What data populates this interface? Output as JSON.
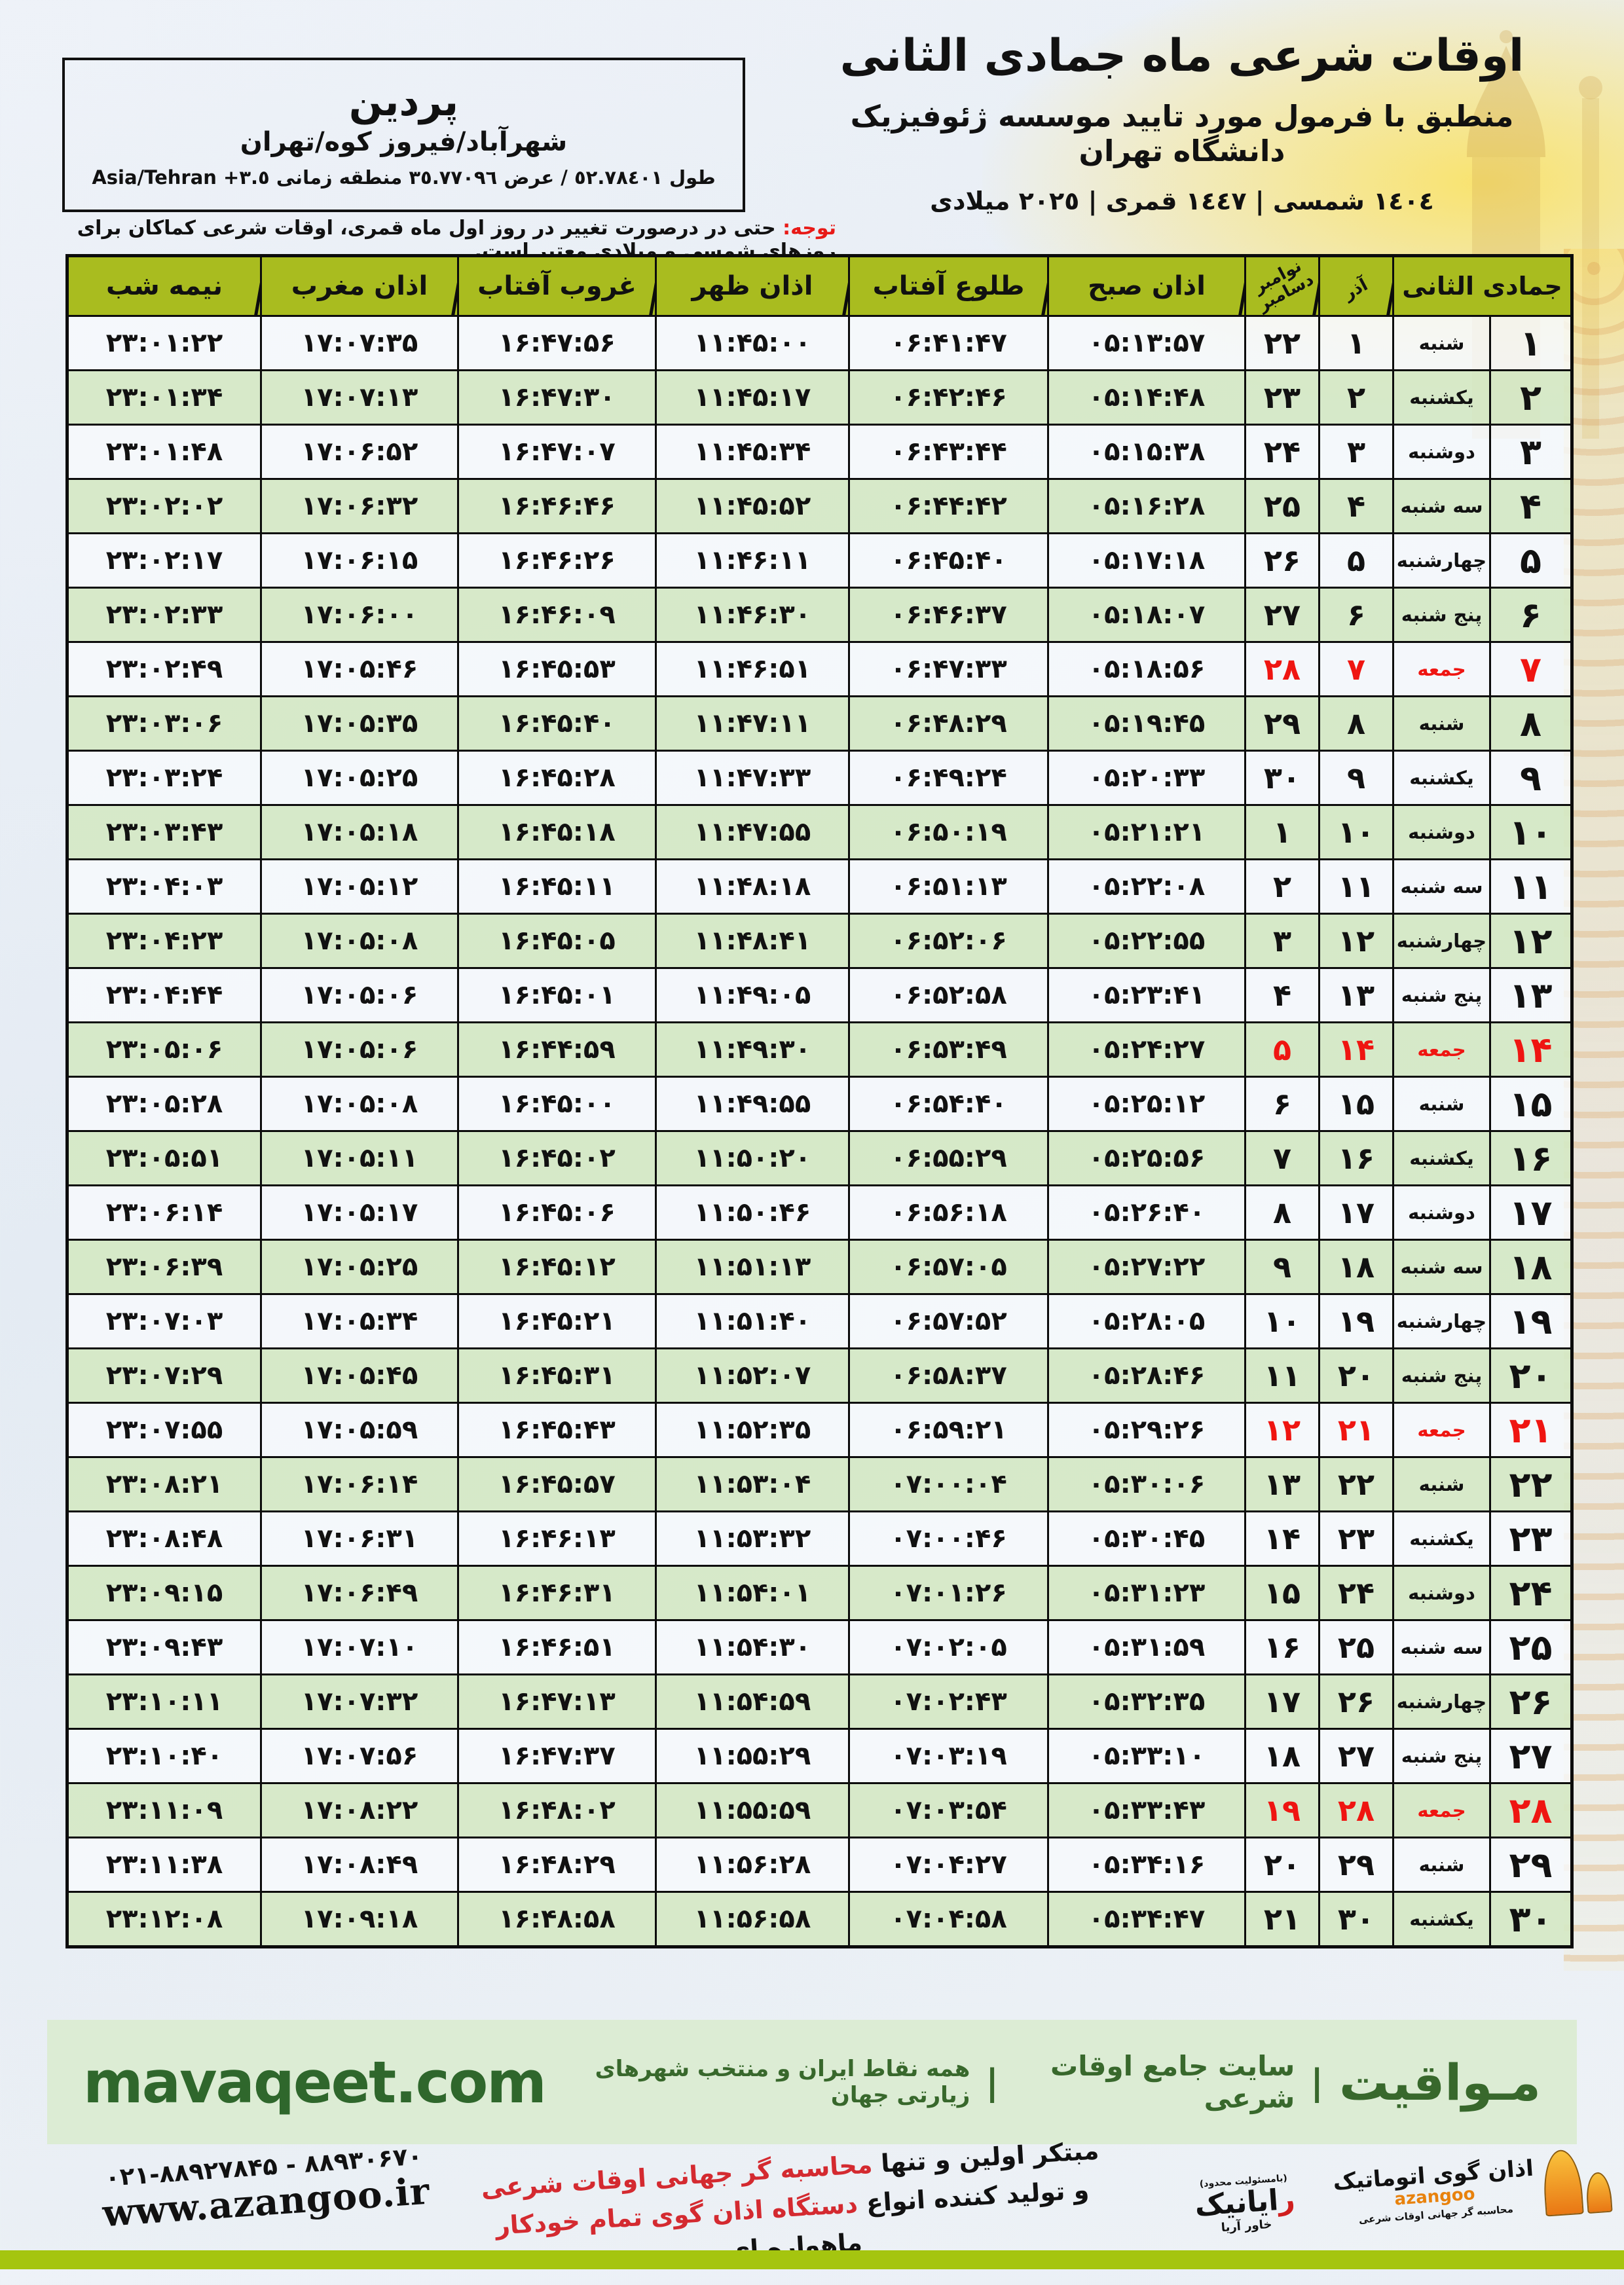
{
  "header": {
    "title": "اوقات شرعی ماه جمادی الثانی",
    "subtitle": "منطبق با فرمول مورد تایید موسسه ژئوفیزیک دانشگاه تهران",
    "date_line": "١٤٠٤ شمسی | ١٤٤٧ قمری | ٢٠٢٥ میلادی",
    "location": {
      "name": "پردین",
      "region": "شهرآباد/فیروز کوه/تهران",
      "coords_prefix": "طول ٥٢.٧٨٤٠١ / عرض ٣٥.٧٧٠٩٦ منطقه زمانی",
      "coords_tz": "Asia/Tehran +٣.٥"
    }
  },
  "note": {
    "label": "توجه:",
    "text": " حتی در درصورت تغییر در روز اول ماه قمری، اوقات شرعی کماکان برای روزهای شمسی و میلادی معتبر است."
  },
  "table": {
    "headers": {
      "month": "جمادی الثانی",
      "azar": "آذر",
      "miladi_1": "نوامبر",
      "miladi_2": "دسامبر",
      "sobh": "اذان صبح",
      "tolu": "طلوع آفتاب",
      "zohr": "اذان ظهر",
      "ghorub": "غروب آفتاب",
      "maghreb": "اذان مغرب",
      "nimeshab": "نیمه شب"
    },
    "rows": [
      {
        "day": "۱",
        "weekday": "شنبه",
        "azar": "۱",
        "miladi": "۲۲",
        "sobh": "۰۵:۱۳:۵۷",
        "tolu": "۰۶:۴۱:۴۷",
        "zohr": "۱۱:۴۵:۰۰",
        "ghorub": "۱۶:۴۷:۵۶",
        "maghreb": "۱۷:۰۷:۳۵",
        "nimeshab": "۲۳:۰۱:۲۲",
        "friday": false
      },
      {
        "day": "۲",
        "weekday": "یکشنبه",
        "azar": "۲",
        "miladi": "۲۳",
        "sobh": "۰۵:۱۴:۴۸",
        "tolu": "۰۶:۴۲:۴۶",
        "zohr": "۱۱:۴۵:۱۷",
        "ghorub": "۱۶:۴۷:۳۰",
        "maghreb": "۱۷:۰۷:۱۳",
        "nimeshab": "۲۳:۰۱:۳۴",
        "friday": false
      },
      {
        "day": "۳",
        "weekday": "دوشنبه",
        "azar": "۳",
        "miladi": "۲۴",
        "sobh": "۰۵:۱۵:۳۸",
        "tolu": "۰۶:۴۳:۴۴",
        "zohr": "۱۱:۴۵:۳۴",
        "ghorub": "۱۶:۴۷:۰۷",
        "maghreb": "۱۷:۰۶:۵۲",
        "nimeshab": "۲۳:۰۱:۴۸",
        "friday": false
      },
      {
        "day": "۴",
        "weekday": "سه شنبه",
        "azar": "۴",
        "miladi": "۲۵",
        "sobh": "۰۵:۱۶:۲۸",
        "tolu": "۰۶:۴۴:۴۲",
        "zohr": "۱۱:۴۵:۵۲",
        "ghorub": "۱۶:۴۶:۴۶",
        "maghreb": "۱۷:۰۶:۳۲",
        "nimeshab": "۲۳:۰۲:۰۲",
        "friday": false
      },
      {
        "day": "۵",
        "weekday": "چهارشنبه",
        "azar": "۵",
        "miladi": "۲۶",
        "sobh": "۰۵:۱۷:۱۸",
        "tolu": "۰۶:۴۵:۴۰",
        "zohr": "۱۱:۴۶:۱۱",
        "ghorub": "۱۶:۴۶:۲۶",
        "maghreb": "۱۷:۰۶:۱۵",
        "nimeshab": "۲۳:۰۲:۱۷",
        "friday": false
      },
      {
        "day": "۶",
        "weekday": "پنج شنبه",
        "azar": "۶",
        "miladi": "۲۷",
        "sobh": "۰۵:۱۸:۰۷",
        "tolu": "۰۶:۴۶:۳۷",
        "zohr": "۱۱:۴۶:۳۰",
        "ghorub": "۱۶:۴۶:۰۹",
        "maghreb": "۱۷:۰۶:۰۰",
        "nimeshab": "۲۳:۰۲:۳۳",
        "friday": false
      },
      {
        "day": "۷",
        "weekday": "جمعه",
        "azar": "۷",
        "miladi": "۲۸",
        "sobh": "۰۵:۱۸:۵۶",
        "tolu": "۰۶:۴۷:۳۳",
        "zohr": "۱۱:۴۶:۵۱",
        "ghorub": "۱۶:۴۵:۵۳",
        "maghreb": "۱۷:۰۵:۴۶",
        "nimeshab": "۲۳:۰۲:۴۹",
        "friday": true
      },
      {
        "day": "۸",
        "weekday": "شنبه",
        "azar": "۸",
        "miladi": "۲۹",
        "sobh": "۰۵:۱۹:۴۵",
        "tolu": "۰۶:۴۸:۲۹",
        "zohr": "۱۱:۴۷:۱۱",
        "ghorub": "۱۶:۴۵:۴۰",
        "maghreb": "۱۷:۰۵:۳۵",
        "nimeshab": "۲۳:۰۳:۰۶",
        "friday": false
      },
      {
        "day": "۹",
        "weekday": "یکشنبه",
        "azar": "۹",
        "miladi": "۳۰",
        "sobh": "۰۵:۲۰:۳۳",
        "tolu": "۰۶:۴۹:۲۴",
        "zohr": "۱۱:۴۷:۳۳",
        "ghorub": "۱۶:۴۵:۲۸",
        "maghreb": "۱۷:۰۵:۲۵",
        "nimeshab": "۲۳:۰۳:۲۴",
        "friday": false
      },
      {
        "day": "۱۰",
        "weekday": "دوشنبه",
        "azar": "۱۰",
        "miladi": "۱",
        "sobh": "۰۵:۲۱:۲۱",
        "tolu": "۰۶:۵۰:۱۹",
        "zohr": "۱۱:۴۷:۵۵",
        "ghorub": "۱۶:۴۵:۱۸",
        "maghreb": "۱۷:۰۵:۱۸",
        "nimeshab": "۲۳:۰۳:۴۳",
        "friday": false
      },
      {
        "day": "۱۱",
        "weekday": "سه شنبه",
        "azar": "۱۱",
        "miladi": "۲",
        "sobh": "۰۵:۲۲:۰۸",
        "tolu": "۰۶:۵۱:۱۳",
        "zohr": "۱۱:۴۸:۱۸",
        "ghorub": "۱۶:۴۵:۱۱",
        "maghreb": "۱۷:۰۵:۱۲",
        "nimeshab": "۲۳:۰۴:۰۳",
        "friday": false
      },
      {
        "day": "۱۲",
        "weekday": "چهارشنبه",
        "azar": "۱۲",
        "miladi": "۳",
        "sobh": "۰۵:۲۲:۵۵",
        "tolu": "۰۶:۵۲:۰۶",
        "zohr": "۱۱:۴۸:۴۱",
        "ghorub": "۱۶:۴۵:۰۵",
        "maghreb": "۱۷:۰۵:۰۸",
        "nimeshab": "۲۳:۰۴:۲۳",
        "friday": false
      },
      {
        "day": "۱۳",
        "weekday": "پنج شنبه",
        "azar": "۱۳",
        "miladi": "۴",
        "sobh": "۰۵:۲۳:۴۱",
        "tolu": "۰۶:۵۲:۵۸",
        "zohr": "۱۱:۴۹:۰۵",
        "ghorub": "۱۶:۴۵:۰۱",
        "maghreb": "۱۷:۰۵:۰۶",
        "nimeshab": "۲۳:۰۴:۴۴",
        "friday": false
      },
      {
        "day": "۱۴",
        "weekday": "جمعه",
        "azar": "۱۴",
        "miladi": "۵",
        "sobh": "۰۵:۲۴:۲۷",
        "tolu": "۰۶:۵۳:۴۹",
        "zohr": "۱۱:۴۹:۳۰",
        "ghorub": "۱۶:۴۴:۵۹",
        "maghreb": "۱۷:۰۵:۰۶",
        "nimeshab": "۲۳:۰۵:۰۶",
        "friday": true
      },
      {
        "day": "۱۵",
        "weekday": "شنبه",
        "azar": "۱۵",
        "miladi": "۶",
        "sobh": "۰۵:۲۵:۱۲",
        "tolu": "۰۶:۵۴:۴۰",
        "zohr": "۱۱:۴۹:۵۵",
        "ghorub": "۱۶:۴۵:۰۰",
        "maghreb": "۱۷:۰۵:۰۸",
        "nimeshab": "۲۳:۰۵:۲۸",
        "friday": false
      },
      {
        "day": "۱۶",
        "weekday": "یکشنبه",
        "azar": "۱۶",
        "miladi": "۷",
        "sobh": "۰۵:۲۵:۵۶",
        "tolu": "۰۶:۵۵:۲۹",
        "zohr": "۱۱:۵۰:۲۰",
        "ghorub": "۱۶:۴۵:۰۲",
        "maghreb": "۱۷:۰۵:۱۱",
        "nimeshab": "۲۳:۰۵:۵۱",
        "friday": false
      },
      {
        "day": "۱۷",
        "weekday": "دوشنبه",
        "azar": "۱۷",
        "miladi": "۸",
        "sobh": "۰۵:۲۶:۴۰",
        "tolu": "۰۶:۵۶:۱۸",
        "zohr": "۱۱:۵۰:۴۶",
        "ghorub": "۱۶:۴۵:۰۶",
        "maghreb": "۱۷:۰۵:۱۷",
        "nimeshab": "۲۳:۰۶:۱۴",
        "friday": false
      },
      {
        "day": "۱۸",
        "weekday": "سه شنبه",
        "azar": "۱۸",
        "miladi": "۹",
        "sobh": "۰۵:۲۷:۲۲",
        "tolu": "۰۶:۵۷:۰۵",
        "zohr": "۱۱:۵۱:۱۳",
        "ghorub": "۱۶:۴۵:۱۲",
        "maghreb": "۱۷:۰۵:۲۵",
        "nimeshab": "۲۳:۰۶:۳۹",
        "friday": false
      },
      {
        "day": "۱۹",
        "weekday": "چهارشنبه",
        "azar": "۱۹",
        "miladi": "۱۰",
        "sobh": "۰۵:۲۸:۰۵",
        "tolu": "۰۶:۵۷:۵۲",
        "zohr": "۱۱:۵۱:۴۰",
        "ghorub": "۱۶:۴۵:۲۱",
        "maghreb": "۱۷:۰۵:۳۴",
        "nimeshab": "۲۳:۰۷:۰۳",
        "friday": false
      },
      {
        "day": "۲۰",
        "weekday": "پنج شنبه",
        "azar": "۲۰",
        "miladi": "۱۱",
        "sobh": "۰۵:۲۸:۴۶",
        "tolu": "۰۶:۵۸:۳۷",
        "zohr": "۱۱:۵۲:۰۷",
        "ghorub": "۱۶:۴۵:۳۱",
        "maghreb": "۱۷:۰۵:۴۵",
        "nimeshab": "۲۳:۰۷:۲۹",
        "friday": false
      },
      {
        "day": "۲۱",
        "weekday": "جمعه",
        "azar": "۲۱",
        "miladi": "۱۲",
        "sobh": "۰۵:۲۹:۲۶",
        "tolu": "۰۶:۵۹:۲۱",
        "zohr": "۱۱:۵۲:۳۵",
        "ghorub": "۱۶:۴۵:۴۳",
        "maghreb": "۱۷:۰۵:۵۹",
        "nimeshab": "۲۳:۰۷:۵۵",
        "friday": true
      },
      {
        "day": "۲۲",
        "weekday": "شنبه",
        "azar": "۲۲",
        "miladi": "۱۳",
        "sobh": "۰۵:۳۰:۰۶",
        "tolu": "۰۷:۰۰:۰۴",
        "zohr": "۱۱:۵۳:۰۴",
        "ghorub": "۱۶:۴۵:۵۷",
        "maghreb": "۱۷:۰۶:۱۴",
        "nimeshab": "۲۳:۰۸:۲۱",
        "friday": false
      },
      {
        "day": "۲۳",
        "weekday": "یکشنبه",
        "azar": "۲۳",
        "miladi": "۱۴",
        "sobh": "۰۵:۳۰:۴۵",
        "tolu": "۰۷:۰۰:۴۶",
        "zohr": "۱۱:۵۳:۳۲",
        "ghorub": "۱۶:۴۶:۱۳",
        "maghreb": "۱۷:۰۶:۳۱",
        "nimeshab": "۲۳:۰۸:۴۸",
        "friday": false
      },
      {
        "day": "۲۴",
        "weekday": "دوشنبه",
        "azar": "۲۴",
        "miladi": "۱۵",
        "sobh": "۰۵:۳۱:۲۳",
        "tolu": "۰۷:۰۱:۲۶",
        "zohr": "۱۱:۵۴:۰۱",
        "ghorub": "۱۶:۴۶:۳۱",
        "maghreb": "۱۷:۰۶:۴۹",
        "nimeshab": "۲۳:۰۹:۱۵",
        "friday": false
      },
      {
        "day": "۲۵",
        "weekday": "سه شنبه",
        "azar": "۲۵",
        "miladi": "۱۶",
        "sobh": "۰۵:۳۱:۵۹",
        "tolu": "۰۷:۰۲:۰۵",
        "zohr": "۱۱:۵۴:۳۰",
        "ghorub": "۱۶:۴۶:۵۱",
        "maghreb": "۱۷:۰۷:۱۰",
        "nimeshab": "۲۳:۰۹:۴۳",
        "friday": false
      },
      {
        "day": "۲۶",
        "weekday": "چهارشنبه",
        "azar": "۲۶",
        "miladi": "۱۷",
        "sobh": "۰۵:۳۲:۳۵",
        "tolu": "۰۷:۰۲:۴۳",
        "zohr": "۱۱:۵۴:۵۹",
        "ghorub": "۱۶:۴۷:۱۳",
        "maghreb": "۱۷:۰۷:۳۲",
        "nimeshab": "۲۳:۱۰:۱۱",
        "friday": false
      },
      {
        "day": "۲۷",
        "weekday": "پنج شنبه",
        "azar": "۲۷",
        "miladi": "۱۸",
        "sobh": "۰۵:۳۳:۱۰",
        "tolu": "۰۷:۰۳:۱۹",
        "zohr": "۱۱:۵۵:۲۹",
        "ghorub": "۱۶:۴۷:۳۷",
        "maghreb": "۱۷:۰۷:۵۶",
        "nimeshab": "۲۳:۱۰:۴۰",
        "friday": false
      },
      {
        "day": "۲۸",
        "weekday": "جمعه",
        "azar": "۲۸",
        "miladi": "۱۹",
        "sobh": "۰۵:۳۳:۴۳",
        "tolu": "۰۷:۰۳:۵۴",
        "zohr": "۱۱:۵۵:۵۹",
        "ghorub": "۱۶:۴۸:۰۲",
        "maghreb": "۱۷:۰۸:۲۲",
        "nimeshab": "۲۳:۱۱:۰۹",
        "friday": true
      },
      {
        "day": "۲۹",
        "weekday": "شنبه",
        "azar": "۲۹",
        "miladi": "۲۰",
        "sobh": "۰۵:۳۴:۱۶",
        "tolu": "۰۷:۰۴:۲۷",
        "zohr": "۱۱:۵۶:۲۸",
        "ghorub": "۱۶:۴۸:۲۹",
        "maghreb": "۱۷:۰۸:۴۹",
        "nimeshab": "۲۳:۱۱:۳۸",
        "friday": false
      },
      {
        "day": "۳۰",
        "weekday": "یکشنبه",
        "azar": "۳۰",
        "miladi": "۲۱",
        "sobh": "۰۵:۳۴:۴۷",
        "tolu": "۰۷:۰۴:۵۸",
        "zohr": "۱۱:۵۶:۵۸",
        "ghorub": "۱۶:۴۸:۵۸",
        "maghreb": "۱۷:۰۹:۱۸",
        "nimeshab": "۲۳:۱۲:۰۸",
        "friday": false
      }
    ]
  },
  "green_footer": {
    "brand": "مـواقیت",
    "separator": "|",
    "site_label": "سایت جامع اوقات شرعی",
    "tagline": "همه نقاط ایران و منتخب شهرهای زیارتی جهان",
    "domain": "mavaqeet.com"
  },
  "bottom": {
    "phone": "۰۲۱-۸۸۹۲۷۸۴۵ - ۸۸۹۳۰۶۷۰",
    "website": "www.azangoo.ir",
    "slogan_line1_black": "مبتکر اولین و تنها ",
    "slogan_line1_red": "محاسبه گر جهانی اوقات شرعی",
    "slogan_line2_black1": "و تولید کننده انواع ",
    "slogan_line2_red": "دستگاه اذان گوی تمام خودکار",
    "slogan_line2_black2": " ماهواره ای",
    "rayanik_top": "(بامسئولیت محدود)",
    "rayanik_red": "ر",
    "rayanik_rest": "ایانیک",
    "rayanik_sub": "خاور آریا",
    "azangoo_fa": "اذان گوی اتوماتیک",
    "azangoo_en": "azangoo",
    "azangoo_tag": "محاسبه گر جهانی اوقات شرعی"
  },
  "colors": {
    "header_green": "#a9bc1f",
    "row_green": "#d5e8c4",
    "friday_red": "#ef1511",
    "note_red": "#e81a17",
    "footer_green_bg": "#dcecd4",
    "footer_green_text": "#38682c",
    "bottom_bar": "#a5c50f",
    "azangoo_orange": "#e8820d"
  }
}
